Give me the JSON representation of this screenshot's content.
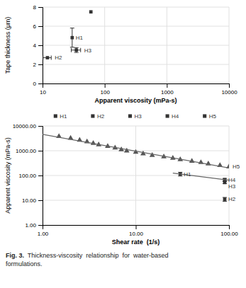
{
  "chart_data": [
    {
      "type": "scatter",
      "log": "x",
      "x_label": "Apparent viscosity (mPa-s)",
      "y_label": "Tape thickness (μm)",
      "xlim": [
        10,
        10000
      ],
      "ylim": [
        0,
        8
      ],
      "xticks": [
        10,
        100,
        1000,
        10000
      ],
      "yticks": [
        0,
        2,
        4,
        6,
        8
      ],
      "grid": true,
      "color": "#333333",
      "marker": "square",
      "legend": "bottom",
      "legend_labels": [
        "H1",
        "H2",
        "H3",
        "H4",
        "H5"
      ],
      "series": [
        {
          "name": "H1",
          "x": [
            30
          ],
          "values": [
            4.8
          ],
          "yerr": [
            1.0
          ]
        },
        {
          "name": "H2",
          "x": [
            12
          ],
          "values": [
            2.7
          ],
          "xerr": [
            1.8
          ]
        },
        {
          "name": "H3",
          "x": [
            35
          ],
          "values": [
            3.5
          ],
          "xerr": [
            6.0
          ],
          "yerr": [
            0.25
          ]
        },
        {
          "x": [
            60
          ],
          "values": [
            7.5
          ]
        }
      ]
    },
    {
      "type": "scatter",
      "log": true,
      "x_label": "Shear rate  (1/s)",
      "y_label": "Apparent viscosity (mPa-s)",
      "xlim": [
        1.0,
        100.0
      ],
      "ylim": [
        1.0,
        10000.0
      ],
      "xticks": [
        {
          "value": 1,
          "label": "1.00"
        },
        {
          "value": 10,
          "label": "10.00"
        },
        {
          "value": 100,
          "label": "100.00"
        }
      ],
      "yticks": [
        {
          "value": 1,
          "label": "1.00"
        },
        {
          "value": 10,
          "label": "10.00"
        },
        {
          "value": 100,
          "label": "100.00"
        },
        {
          "value": 1000,
          "label": "1000.00"
        },
        {
          "value": 10000,
          "label": "10000.00"
        }
      ],
      "grid": true,
      "series": [
        {
          "name": "H5",
          "marker": "triangle",
          "color": "#555555",
          "x": [
            1.5,
            2.0,
            2.5,
            3.0,
            3.5,
            4.0,
            5.0,
            6.0,
            7.0,
            8.0,
            10.0,
            12.0,
            15.0,
            20.0,
            25.0,
            30.0,
            40.0,
            50.0,
            60.0,
            80.0,
            100.0
          ],
          "values": [
            3800,
            3200,
            2700,
            2300,
            2000,
            1750,
            1500,
            1300,
            1100,
            980,
            870,
            760,
            650,
            570,
            500,
            440,
            380,
            335,
            295,
            255,
            225
          ]
        },
        {
          "type": "line",
          "line_style": "solid",
          "color": "#666666",
          "x": [
            1.0,
            100.0
          ],
          "values": [
            4562.1,
            199.99
          ]
        },
        {
          "name": "H1",
          "marker": "square",
          "color": "#333333",
          "x": [
            30.0
          ],
          "values": [
            115.0
          ],
          "yerr": [
            20.0
          ]
        },
        {
          "name": "H4",
          "marker": "square",
          "color": "#333333",
          "x": [
            90.0
          ],
          "values": [
            68.0
          ],
          "yerr": [
            8.0
          ]
        },
        {
          "name": "H3",
          "marker": "square",
          "color": "#333333",
          "x": [
            90.0
          ],
          "values": [
            52.0
          ],
          "yerr": [
            5.0
          ]
        },
        {
          "name": "H2",
          "marker": "square",
          "color": "#333333",
          "x": [
            90.0
          ],
          "values": [
            11.0
          ],
          "yerr": [
            2.0
          ]
        },
        {
          "type": "line",
          "line_style": "solid",
          "color": "#666666",
          "x": [
            25.0,
            100.0
          ],
          "values": [
            125.48,
            64.66
          ]
        }
      ]
    }
  ],
  "figure_label": "Fig. 3.",
  "caption": "  Thickness-viscosity  relationship  for  water-based\nformulations."
}
